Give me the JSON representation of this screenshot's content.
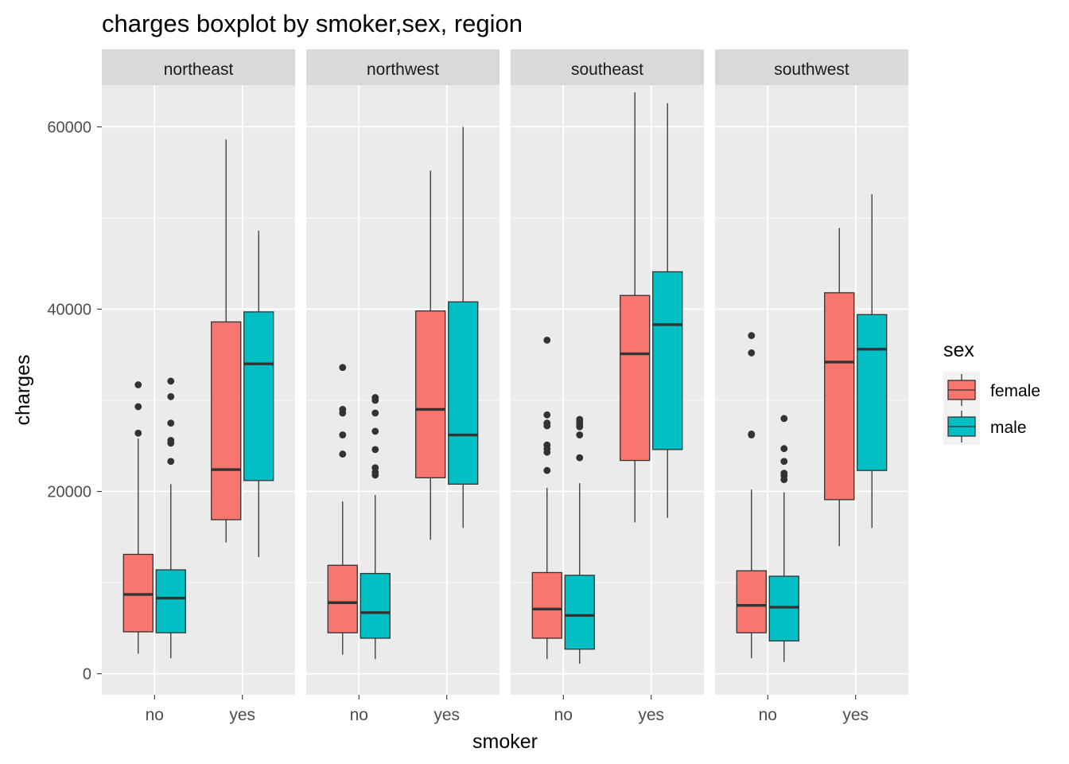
{
  "chart_data": {
    "type": "boxplot",
    "title": "charges boxplot by smoker,sex, region",
    "xlabel": "smoker",
    "ylabel": "charges",
    "ylim": [
      -2000,
      67500
    ],
    "yticks": [
      0,
      20000,
      40000,
      60000
    ],
    "ytick_labels": [
      "0",
      "20000",
      "40000",
      "60000"
    ],
    "categories": [
      "no",
      "yes"
    ],
    "grid": true,
    "legend": {
      "title": "sex",
      "position": "right",
      "entries": [
        {
          "name": "female",
          "color": "#F8766D"
        },
        {
          "name": "male",
          "color": "#00BFC4"
        }
      ]
    },
    "facets": [
      {
        "name": "northeast",
        "boxes": [
          {
            "smoker": "no",
            "sex": "female",
            "min": 2200,
            "q1": 4600,
            "median": 8700,
            "q3": 13100,
            "max": 25800,
            "outliers": [
              26400,
              29300,
              31700
            ]
          },
          {
            "smoker": "no",
            "sex": "male",
            "min": 1700,
            "q1": 4500,
            "median": 8300,
            "q3": 11400,
            "max": 20800,
            "outliers": [
              23300,
              25300,
              25600,
              27500,
              30400,
              32100
            ]
          },
          {
            "smoker": "yes",
            "sex": "female",
            "min": 14400,
            "q1": 16900,
            "median": 22400,
            "q3": 38600,
            "max": 58600,
            "outliers": []
          },
          {
            "smoker": "yes",
            "sex": "male",
            "min": 12800,
            "q1": 21200,
            "median": 34000,
            "q3": 39700,
            "max": 48600,
            "outliers": []
          }
        ]
      },
      {
        "name": "northwest",
        "boxes": [
          {
            "smoker": "no",
            "sex": "female",
            "min": 2100,
            "q1": 4500,
            "median": 7800,
            "q3": 11900,
            "max": 18900,
            "outliers": [
              24100,
              26200,
              28600,
              29000,
              33600
            ]
          },
          {
            "smoker": "no",
            "sex": "male",
            "min": 1600,
            "q1": 3900,
            "median": 6700,
            "q3": 11000,
            "max": 19600,
            "outliers": [
              21800,
              22100,
              22600,
              24600,
              26600,
              28600,
              30000,
              30300
            ]
          },
          {
            "smoker": "yes",
            "sex": "female",
            "min": 14700,
            "q1": 21500,
            "median": 29000,
            "q3": 39800,
            "max": 55200,
            "outliers": []
          },
          {
            "smoker": "yes",
            "sex": "male",
            "min": 16000,
            "q1": 20800,
            "median": 26200,
            "q3": 40800,
            "max": 60000,
            "outliers": []
          }
        ]
      },
      {
        "name": "southeast",
        "boxes": [
          {
            "smoker": "no",
            "sex": "female",
            "min": 1600,
            "q1": 3900,
            "median": 7100,
            "q3": 11100,
            "max": 20400,
            "outliers": [
              22300,
              24300,
              24700,
              25100,
              27200,
              27500,
              28400,
              36600
            ]
          },
          {
            "smoker": "no",
            "sex": "male",
            "min": 1100,
            "q1": 2700,
            "median": 6400,
            "q3": 10800,
            "max": 20900,
            "outliers": [
              23700,
              26200,
              27100,
              27400,
              27700,
              27900
            ]
          },
          {
            "smoker": "yes",
            "sex": "female",
            "min": 16600,
            "q1": 23400,
            "median": 35100,
            "q3": 41500,
            "max": 63800,
            "outliers": []
          },
          {
            "smoker": "yes",
            "sex": "male",
            "min": 17100,
            "q1": 24600,
            "median": 38300,
            "q3": 44100,
            "max": 62600,
            "outliers": []
          }
        ]
      },
      {
        "name": "southwest",
        "boxes": [
          {
            "smoker": "no",
            "sex": "female",
            "min": 1700,
            "q1": 4500,
            "median": 7500,
            "q3": 11300,
            "max": 20200,
            "outliers": [
              26200,
              26300,
              35200,
              37100
            ]
          },
          {
            "smoker": "no",
            "sex": "male",
            "min": 1300,
            "q1": 3600,
            "median": 7300,
            "q3": 10700,
            "max": 19900,
            "outliers": [
              21300,
              21700,
              22000,
              23300,
              24700,
              28000
            ]
          },
          {
            "smoker": "yes",
            "sex": "female",
            "min": 14000,
            "q1": 19100,
            "median": 34200,
            "q3": 41800,
            "max": 48900,
            "outliers": []
          },
          {
            "smoker": "yes",
            "sex": "male",
            "min": 16000,
            "q1": 22300,
            "median": 35600,
            "q3": 39400,
            "max": 52600,
            "outliers": []
          }
        ]
      }
    ]
  }
}
